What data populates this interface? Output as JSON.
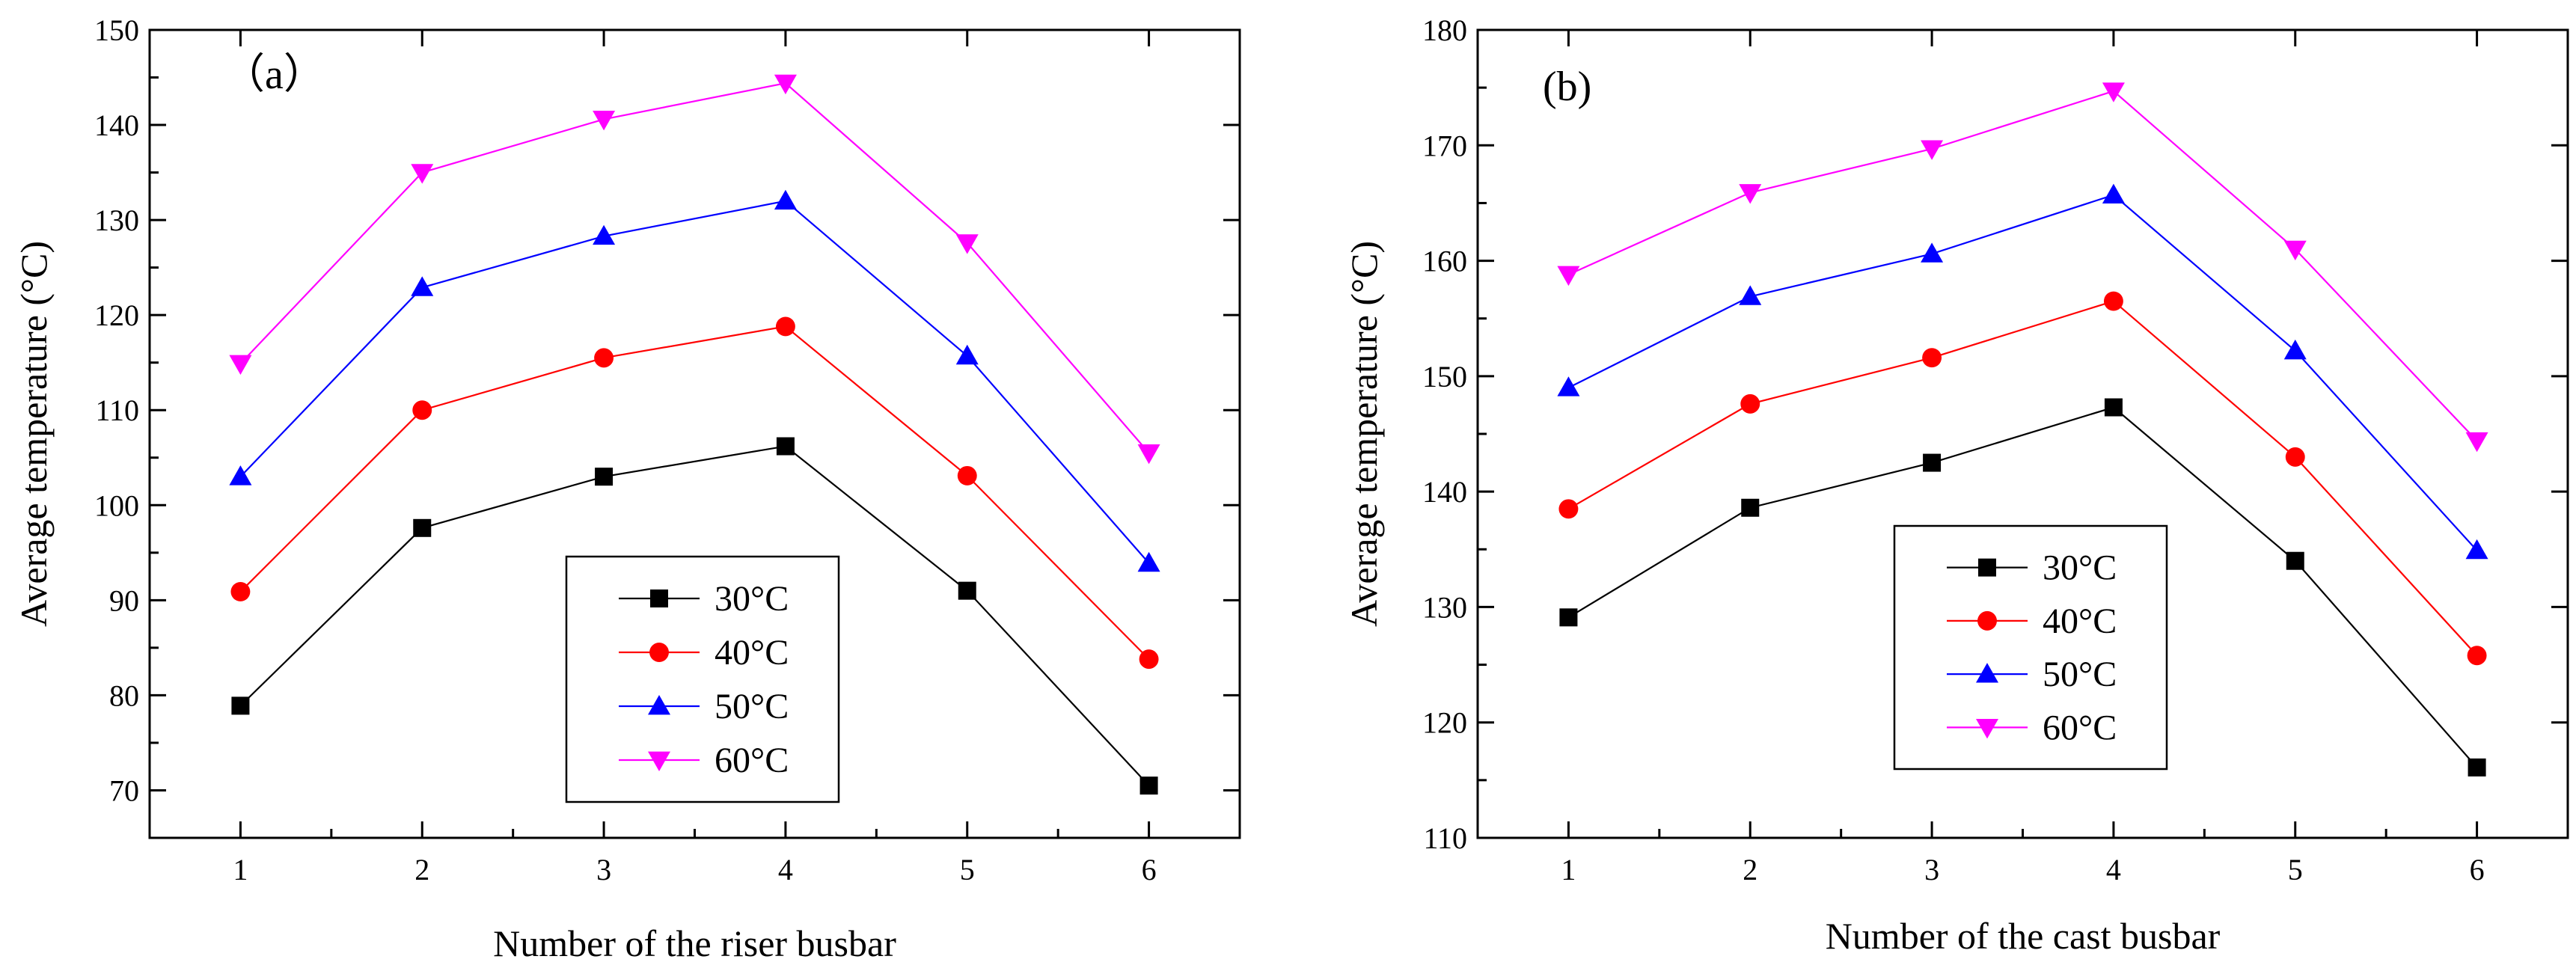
{
  "chart_data": [
    {
      "type": "line",
      "panel_label": "（a）",
      "xlabel": "Number of the riser busbar",
      "ylabel": "Average temperature (°C)",
      "x": [
        1,
        2,
        3,
        4,
        5,
        6
      ],
      "x_ticks": [
        "1",
        "2",
        "3",
        "4",
        "5",
        "6"
      ],
      "xlim": [
        0.5,
        6.5
      ],
      "ylim": [
        65,
        150
      ],
      "y_ticks": [
        70,
        80,
        90,
        100,
        110,
        120,
        130,
        140,
        150
      ],
      "grid": false,
      "legend_position": "bottom-center",
      "series": [
        {
          "name": "30°C",
          "values": [
            78.9,
            97.6,
            103.0,
            106.2,
            91.0,
            70.5
          ],
          "color": "#000000",
          "marker": "square"
        },
        {
          "name": "40°C",
          "values": [
            90.9,
            110.0,
            115.5,
            118.8,
            103.1,
            83.8
          ],
          "color": "#ff0000",
          "marker": "circle"
        },
        {
          "name": "50°C",
          "values": [
            103.0,
            122.9,
            128.3,
            132.0,
            115.7,
            93.9
          ],
          "color": "#0000ff",
          "marker": "triangle-up"
        },
        {
          "name": "60°C",
          "values": [
            114.9,
            135.0,
            140.6,
            144.4,
            127.6,
            105.5
          ],
          "color": "#ff00ff",
          "marker": "triangle-down"
        }
      ]
    },
    {
      "type": "line",
      "panel_label": "(b)",
      "xlabel": "Number of the cast busbar",
      "ylabel": "Average temperature (°C)",
      "x": [
        1,
        2,
        3,
        4,
        5,
        6
      ],
      "x_ticks": [
        "1",
        "2",
        "3",
        "4",
        "5",
        "6"
      ],
      "xlim": [
        0.5,
        6.5
      ],
      "ylim": [
        110,
        180
      ],
      "y_ticks": [
        110,
        120,
        130,
        140,
        150,
        160,
        170,
        180
      ],
      "grid": false,
      "legend_position": "bottom-center",
      "series": [
        {
          "name": "30°C",
          "values": [
            129.1,
            138.6,
            142.5,
            147.3,
            134.0,
            116.1
          ],
          "color": "#000000",
          "marker": "square"
        },
        {
          "name": "40°C",
          "values": [
            138.5,
            147.6,
            151.6,
            156.5,
            143.0,
            125.8
          ],
          "color": "#ff0000",
          "marker": "circle"
        },
        {
          "name": "50°C",
          "values": [
            149.0,
            156.9,
            160.6,
            165.7,
            152.2,
            134.9
          ],
          "color": "#0000ff",
          "marker": "triangle-up"
        },
        {
          "name": "60°C",
          "values": [
            158.8,
            165.9,
            169.7,
            174.7,
            161.0,
            144.4
          ],
          "color": "#ff00ff",
          "marker": "triangle-down"
        }
      ]
    }
  ]
}
